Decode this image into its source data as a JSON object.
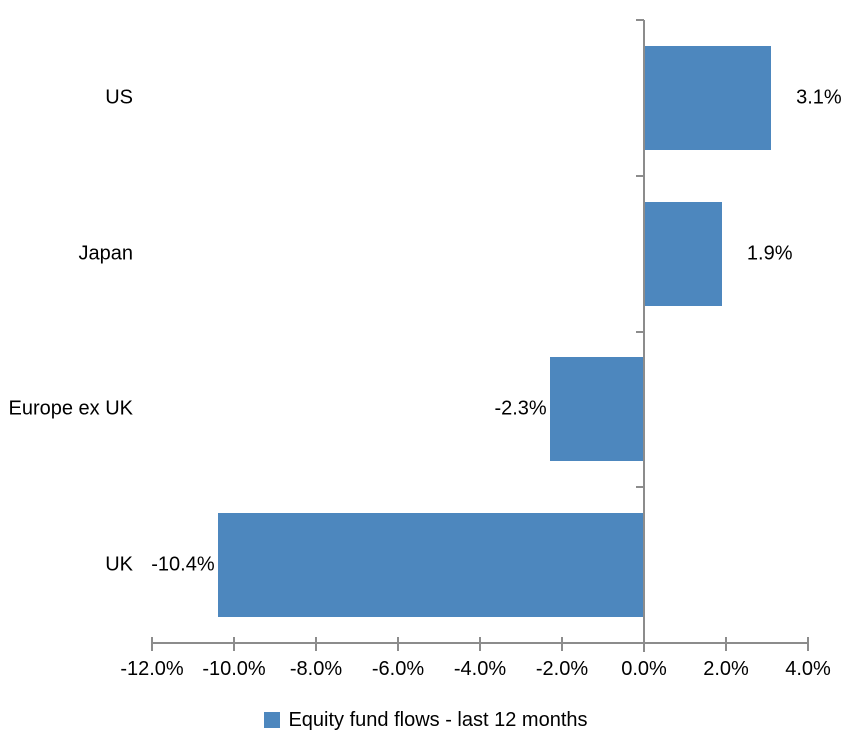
{
  "chart_data": {
    "type": "bar",
    "orientation": "horizontal",
    "categories": [
      "US",
      "Japan",
      "Europe ex UK",
      "UK"
    ],
    "series": [
      {
        "name": "Equity fund flows - last 12 months",
        "values": [
          3.1,
          1.9,
          -2.3,
          -10.4
        ],
        "data_labels": [
          "3.1%",
          "1.9%",
          "-2.3%",
          "-10.4%"
        ],
        "color": "#4D87BE"
      }
    ],
    "x_axis": {
      "min": -12,
      "max": 4,
      "tick_values": [
        -12,
        -10,
        -8,
        -6,
        -4,
        -2,
        0,
        2,
        4
      ],
      "tick_labels": [
        "-12.0%",
        "-10.0%",
        "-8.0%",
        "-6.0%",
        "-4.0%",
        "-2.0%",
        "0.0%",
        "2.0%",
        "4.0%"
      ]
    },
    "legend": {
      "position": "bottom",
      "entries": [
        {
          "label": "Equity fund flows - last 12 months",
          "color": "#4D87BE"
        }
      ]
    },
    "grid": false,
    "axis_color": "#8C8C8C",
    "text_color": "#000000",
    "background": "#FFFFFF"
  }
}
